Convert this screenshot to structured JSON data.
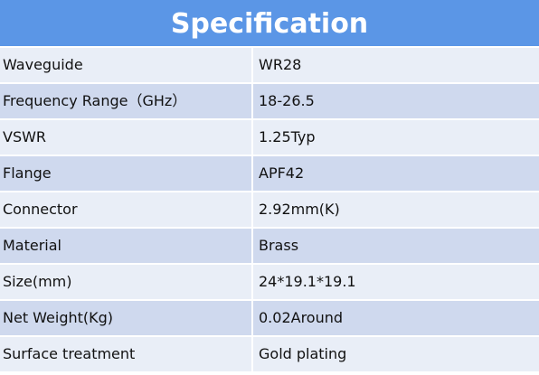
{
  "table": {
    "title": "Specification",
    "rows": [
      [
        "Waveguide",
        "WR28"
      ],
      [
        "Frequency Range（GHz）",
        "18-26.5"
      ],
      [
        "VSWR",
        "1.25Typ"
      ],
      [
        "Flange",
        "APF42"
      ],
      [
        "Connector",
        "2.92mm(K)"
      ],
      [
        "Material",
        "Brass"
      ],
      [
        "Size(mm)",
        "24*19.1*19.1"
      ],
      [
        "Net Weight(Kg)",
        "0.02Around"
      ],
      [
        "Surface treatment",
        "Gold plating"
      ]
    ]
  }
}
